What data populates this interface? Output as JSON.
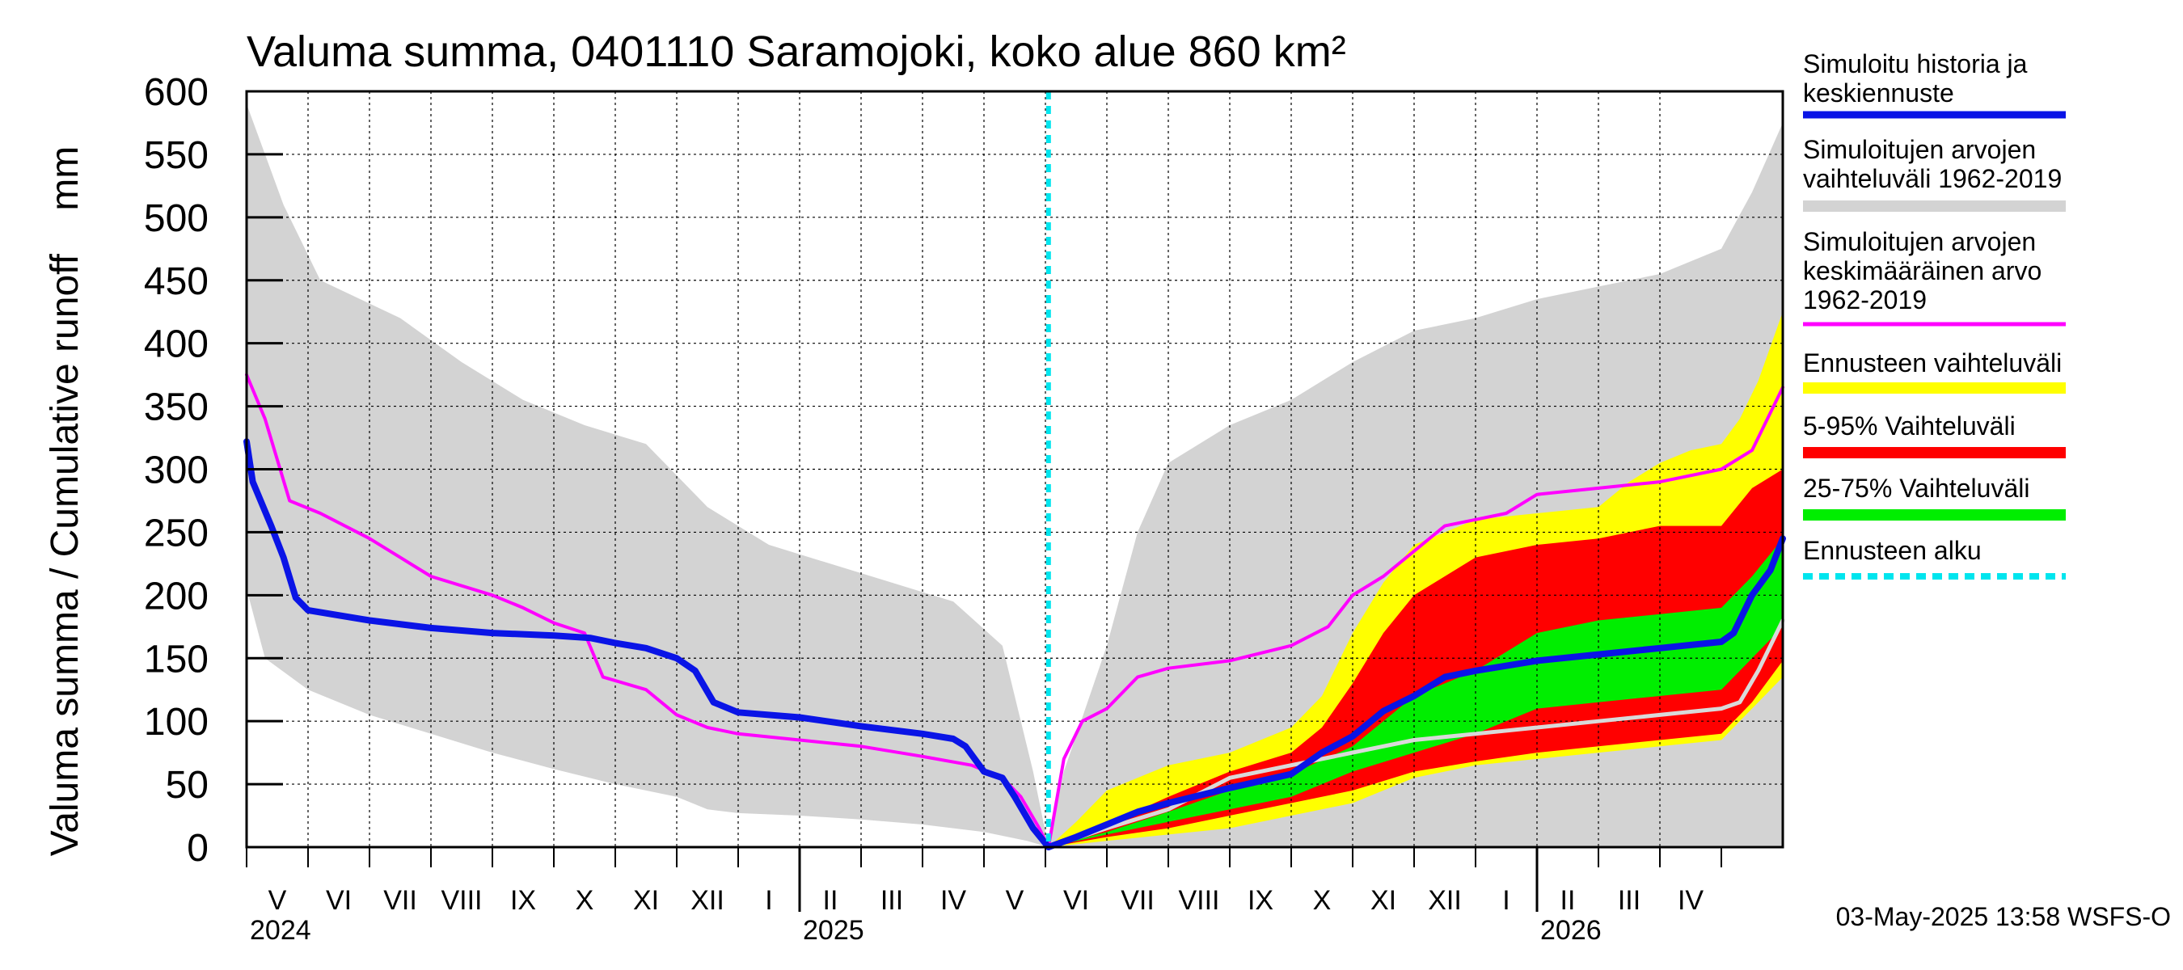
{
  "chart_data": {
    "type": "area",
    "title": "Valuma summa, 0401110 Saramojoki, koko alue 860 km²",
    "ylabel": "Valuma summa / Cumulative runoff    mm",
    "ylim": [
      0,
      600
    ],
    "yticks": [
      0,
      50,
      100,
      150,
      200,
      250,
      300,
      350,
      400,
      450,
      500,
      550,
      600
    ],
    "x_unit": "months since 2024-04-01",
    "xlim": [
      0,
      25
    ],
    "forecast_start": 13.05,
    "months": [
      "V",
      "VI",
      "VII",
      "VIII",
      "IX",
      "X",
      "XI",
      "XII",
      "I",
      "II",
      "III",
      "IV",
      "V",
      "VI",
      "VII",
      "VIII",
      "IX",
      "X",
      "XI",
      "XII",
      "I",
      "II",
      "III",
      "IV"
    ],
    "years": [
      {
        "label": "2024",
        "x": 0
      },
      {
        "label": "2025",
        "x": 9
      },
      {
        "label": "2026",
        "x": 21
      }
    ],
    "legend": [
      {
        "label": "Simuloitu historia ja keskiennuste",
        "color": "#0a14e6",
        "style": "line-thick"
      },
      {
        "label": "Simuloitujen arvojen vaihteluväli 1962-2019",
        "color": "#d3d3d3",
        "style": "band"
      },
      {
        "label": "Simuloitujen arvojen keskimääräinen arvo 1962-2019",
        "color": "#ff00ff",
        "style": "line"
      },
      {
        "label": "Ennusteen vaihteluväli",
        "color": "#ffff00",
        "style": "band"
      },
      {
        "label": "5-95% Vaihteluväli",
        "color": "#ff0000",
        "style": "band"
      },
      {
        "label": "25-75% Vaihteluväli",
        "color": "#00ee00",
        "style": "band"
      },
      {
        "label": "Ennusteen alku",
        "color": "#00e5ee",
        "style": "dashed"
      }
    ],
    "legend_lines": [
      [
        "Simuloitu historia ja",
        "keskiennuste"
      ],
      [
        "Simuloitujen arvojen",
        "vaihteluväli 1962-2019"
      ],
      [
        "Simuloitujen arvojen",
        "keskimääräinen arvo",
        "   1962-2019"
      ],
      [
        "Ennusteen vaihteluväli"
      ],
      [
        "5-95% Vaihteluväli"
      ],
      [
        "25-75% Vaihteluväli"
      ],
      [
        "Ennusteen alku"
      ]
    ],
    "timestamp": "03-May-2025 13:58 WSFS-O",
    "series": {
      "hist_range_upper": [
        [
          0,
          590
        ],
        [
          0.6,
          510
        ],
        [
          1.2,
          450
        ],
        [
          2.5,
          420
        ],
        [
          3.5,
          385
        ],
        [
          4.5,
          355
        ],
        [
          5.5,
          335
        ],
        [
          6.5,
          320
        ],
        [
          7.5,
          270
        ],
        [
          8.5,
          240
        ],
        [
          9.5,
          225
        ],
        [
          10.5,
          210
        ],
        [
          11.5,
          195
        ],
        [
          12.3,
          160
        ],
        [
          12.8,
          60
        ],
        [
          13.05,
          0
        ],
        [
          13.3,
          60
        ],
        [
          14,
          160
        ],
        [
          14.5,
          250
        ],
        [
          15,
          305
        ],
        [
          16,
          335
        ],
        [
          17,
          355
        ],
        [
          18,
          385
        ],
        [
          19,
          410
        ],
        [
          20,
          420
        ],
        [
          21,
          435
        ],
        [
          22,
          445
        ],
        [
          23,
          455
        ],
        [
          24,
          475
        ],
        [
          24.5,
          520
        ],
        [
          25,
          575
        ]
      ],
      "hist_range_lower": [
        [
          0,
          205
        ],
        [
          0.3,
          150
        ],
        [
          1,
          125
        ],
        [
          2,
          105
        ],
        [
          3,
          90
        ],
        [
          4,
          75
        ],
        [
          5,
          62
        ],
        [
          6,
          50
        ],
        [
          7,
          40
        ],
        [
          7.5,
          30
        ],
        [
          8,
          27
        ],
        [
          9,
          25
        ],
        [
          10,
          22
        ],
        [
          11,
          18
        ],
        [
          12,
          12
        ],
        [
          12.7,
          5
        ],
        [
          13.05,
          0
        ]
      ],
      "hist_mean": [
        [
          0,
          375
        ],
        [
          0.3,
          340
        ],
        [
          0.7,
          275
        ],
        [
          1.2,
          265
        ],
        [
          2,
          245
        ],
        [
          2.5,
          230
        ],
        [
          3,
          215
        ],
        [
          4,
          200
        ],
        [
          4.5,
          190
        ],
        [
          5,
          178
        ],
        [
          5.5,
          170
        ],
        [
          5.8,
          135
        ],
        [
          6.5,
          125
        ],
        [
          7,
          105
        ],
        [
          7.5,
          95
        ],
        [
          8,
          90
        ],
        [
          9,
          85
        ],
        [
          10,
          80
        ],
        [
          11,
          72
        ],
        [
          11.8,
          65
        ],
        [
          12.3,
          55
        ],
        [
          12.6,
          40
        ],
        [
          12.9,
          15
        ],
        [
          13.05,
          0
        ],
        [
          13.3,
          70
        ],
        [
          13.6,
          100
        ],
        [
          14,
          110
        ],
        [
          14.5,
          135
        ],
        [
          15,
          142
        ],
        [
          16,
          148
        ],
        [
          17,
          160
        ],
        [
          17.6,
          175
        ],
        [
          18,
          200
        ],
        [
          18.5,
          215
        ],
        [
          19,
          235
        ],
        [
          19.5,
          255
        ],
        [
          20,
          260
        ],
        [
          20.5,
          265
        ],
        [
          21,
          280
        ],
        [
          22,
          285
        ],
        [
          23,
          290
        ],
        [
          24,
          300
        ],
        [
          24.5,
          315
        ],
        [
          25,
          365
        ]
      ],
      "sim_history": [
        [
          0,
          322
        ],
        [
          0.1,
          290
        ],
        [
          0.4,
          255
        ],
        [
          0.6,
          230
        ],
        [
          0.8,
          198
        ],
        [
          1,
          188
        ],
        [
          2,
          180
        ],
        [
          3,
          174
        ],
        [
          4,
          170
        ],
        [
          5,
          168
        ],
        [
          5.6,
          166
        ],
        [
          6,
          162
        ],
        [
          6.5,
          158
        ],
        [
          7,
          150
        ],
        [
          7.3,
          140
        ],
        [
          7.6,
          115
        ],
        [
          8,
          107
        ],
        [
          9,
          103
        ],
        [
          10,
          96
        ],
        [
          11,
          90
        ],
        [
          11.5,
          86
        ],
        [
          11.7,
          80
        ],
        [
          12,
          60
        ],
        [
          12.3,
          55
        ],
        [
          12.5,
          40
        ],
        [
          12.8,
          15
        ],
        [
          13.05,
          0
        ]
      ],
      "median_forecast": [
        [
          13.05,
          0
        ],
        [
          13.5,
          8
        ],
        [
          14,
          18
        ],
        [
          14.5,
          28
        ],
        [
          15,
          35
        ],
        [
          16,
          47
        ],
        [
          17,
          58
        ],
        [
          17.5,
          75
        ],
        [
          18,
          88
        ],
        [
          18.5,
          108
        ],
        [
          19,
          120
        ],
        [
          19.5,
          135
        ],
        [
          20,
          140
        ],
        [
          21,
          148
        ],
        [
          22,
          153
        ],
        [
          23,
          158
        ],
        [
          24,
          163
        ],
        [
          24.2,
          170
        ],
        [
          24.5,
          200
        ],
        [
          24.8,
          220
        ],
        [
          25,
          245
        ]
      ],
      "ensemble_mean": [
        [
          13.05,
          0
        ],
        [
          14,
          15
        ],
        [
          15,
          30
        ],
        [
          16,
          55
        ],
        [
          17,
          65
        ],
        [
          18,
          75
        ],
        [
          19,
          85
        ],
        [
          20,
          90
        ],
        [
          21,
          95
        ],
        [
          22,
          100
        ],
        [
          23,
          105
        ],
        [
          24,
          110
        ],
        [
          24.3,
          115
        ],
        [
          24.6,
          140
        ],
        [
          25,
          180
        ]
      ],
      "forecast_full_upper": [
        [
          13.05,
          0
        ],
        [
          13.5,
          20
        ],
        [
          14,
          45
        ],
        [
          14.5,
          55
        ],
        [
          15,
          65
        ],
        [
          16,
          75
        ],
        [
          17,
          95
        ],
        [
          17.5,
          120
        ],
        [
          18,
          170
        ],
        [
          18.5,
          210
        ],
        [
          19,
          240
        ],
        [
          20,
          260
        ],
        [
          21,
          265
        ],
        [
          22,
          270
        ],
        [
          22.5,
          290
        ],
        [
          23,
          305
        ],
        [
          23.5,
          315
        ],
        [
          24,
          320
        ],
        [
          24.3,
          340
        ],
        [
          24.6,
          370
        ],
        [
          25,
          425
        ]
      ],
      "forecast_full_lower": [
        [
          13.05,
          0
        ],
        [
          14,
          5
        ],
        [
          15,
          10
        ],
        [
          16,
          15
        ],
        [
          17,
          25
        ],
        [
          18,
          35
        ],
        [
          18.5,
          45
        ],
        [
          19,
          55
        ],
        [
          20,
          65
        ],
        [
          21,
          70
        ],
        [
          22,
          75
        ],
        [
          23,
          80
        ],
        [
          24,
          85
        ],
        [
          24.5,
          110
        ],
        [
          25,
          135
        ]
      ],
      "p95": [
        [
          13.05,
          0
        ],
        [
          14,
          18
        ],
        [
          15,
          40
        ],
        [
          16,
          60
        ],
        [
          17,
          75
        ],
        [
          17.5,
          95
        ],
        [
          18,
          130
        ],
        [
          18.5,
          170
        ],
        [
          19,
          200
        ],
        [
          20,
          230
        ],
        [
          21,
          240
        ],
        [
          22,
          245
        ],
        [
          23,
          255
        ],
        [
          24,
          255
        ],
        [
          24.5,
          285
        ],
        [
          25,
          300
        ]
      ],
      "p05": [
        [
          13.05,
          0
        ],
        [
          14,
          8
        ],
        [
          15,
          15
        ],
        [
          16,
          25
        ],
        [
          17,
          35
        ],
        [
          18,
          45
        ],
        [
          19,
          60
        ],
        [
          20,
          68
        ],
        [
          21,
          75
        ],
        [
          22,
          80
        ],
        [
          23,
          85
        ],
        [
          24,
          90
        ],
        [
          24.5,
          115
        ],
        [
          25,
          148
        ]
      ],
      "p75": [
        [
          13.05,
          0
        ],
        [
          14,
          12
        ],
        [
          15,
          28
        ],
        [
          16,
          45
        ],
        [
          17,
          58
        ],
        [
          18,
          80
        ],
        [
          19,
          120
        ],
        [
          20,
          140
        ],
        [
          21,
          170
        ],
        [
          22,
          180
        ],
        [
          23,
          185
        ],
        [
          24,
          190
        ],
        [
          24.5,
          215
        ],
        [
          25,
          245
        ]
      ],
      "p25": [
        [
          13.05,
          0
        ],
        [
          14,
          10
        ],
        [
          15,
          20
        ],
        [
          16,
          30
        ],
        [
          17,
          40
        ],
        [
          18,
          60
        ],
        [
          19,
          75
        ],
        [
          20,
          90
        ],
        [
          21,
          110
        ],
        [
          22,
          115
        ],
        [
          23,
          120
        ],
        [
          24,
          125
        ],
        [
          24.5,
          150
        ],
        [
          25,
          175
        ]
      ]
    }
  }
}
